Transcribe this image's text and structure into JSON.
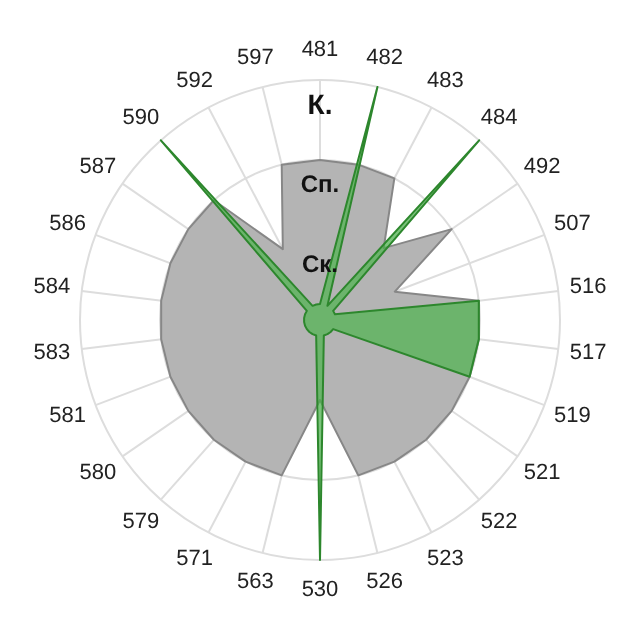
{
  "chart_data": {
    "type": "radar",
    "categories": [
      "481",
      "482",
      "483",
      "484",
      "492",
      "507",
      "516",
      "517",
      "519",
      "521",
      "522",
      "523",
      "526",
      "530",
      "563",
      "571",
      "579",
      "580",
      "581",
      "583",
      "584",
      "586",
      "587",
      "590",
      "592",
      "597"
    ],
    "series": [
      {
        "color": "#b4b4b4",
        "values": [
          2,
          2,
          2,
          1.2,
          2,
          1,
          2,
          2,
          2,
          2,
          2,
          2,
          2,
          1,
          2,
          2,
          2,
          2,
          2,
          2,
          2,
          2,
          2,
          2,
          1,
          2
        ]
      },
      {
        "color": "#3cb43c",
        "values": [
          0.2,
          3,
          0.2,
          3,
          0.2,
          0.2,
          2,
          2,
          2,
          0.2,
          0.2,
          0.2,
          0.2,
          3,
          0.2,
          0.2,
          0.2,
          0.2,
          0.2,
          0.2,
          0.2,
          0.2,
          0.2,
          3,
          0.2,
          0.2
        ]
      }
    ],
    "ylim": [
      0,
      3
    ],
    "yticks": [
      {
        "value": 1,
        "label": "Ск."
      },
      {
        "value": 2,
        "label": "Сп."
      },
      {
        "value": 3,
        "label": "К."
      }
    ],
    "grid": true
  }
}
